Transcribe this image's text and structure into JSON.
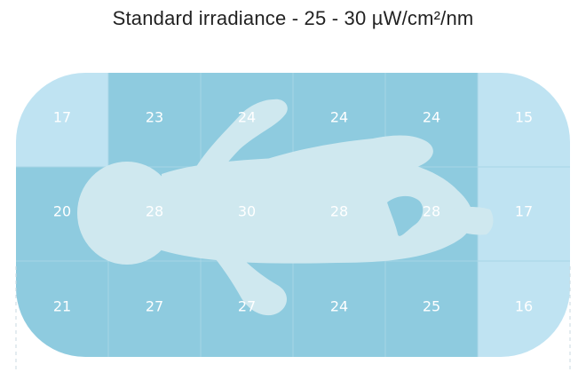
{
  "title": "Standard irradiance - 25 - 30 µW/cm²/nm",
  "colors": {
    "low": "#bfe3f2",
    "high": "#8ecbdf",
    "silhouette": "#cfe8ef",
    "grid_line": "#a7d6e6",
    "label": "#ffffff"
  },
  "grid": {
    "rows": [
      {
        "cells": [
          {
            "value": "17",
            "level": "low"
          },
          {
            "value": "23",
            "level": "high"
          },
          {
            "value": "24",
            "level": "high"
          },
          {
            "value": "24",
            "level": "high"
          },
          {
            "value": "24",
            "level": "high"
          },
          {
            "value": "15",
            "level": "low"
          }
        ]
      },
      {
        "cells": [
          {
            "value": "20",
            "level": "high"
          },
          {
            "value": "28",
            "level": "high"
          },
          {
            "value": "30",
            "level": "high"
          },
          {
            "value": "28",
            "level": "high"
          },
          {
            "value": "28",
            "level": "high"
          },
          {
            "value": "17",
            "level": "low"
          }
        ]
      },
      {
        "cells": [
          {
            "value": "21",
            "level": "high"
          },
          {
            "value": "27",
            "level": "high"
          },
          {
            "value": "27",
            "level": "high"
          },
          {
            "value": "24",
            "level": "high"
          },
          {
            "value": "25",
            "level": "high"
          },
          {
            "value": "16",
            "level": "low"
          }
        ]
      }
    ]
  }
}
